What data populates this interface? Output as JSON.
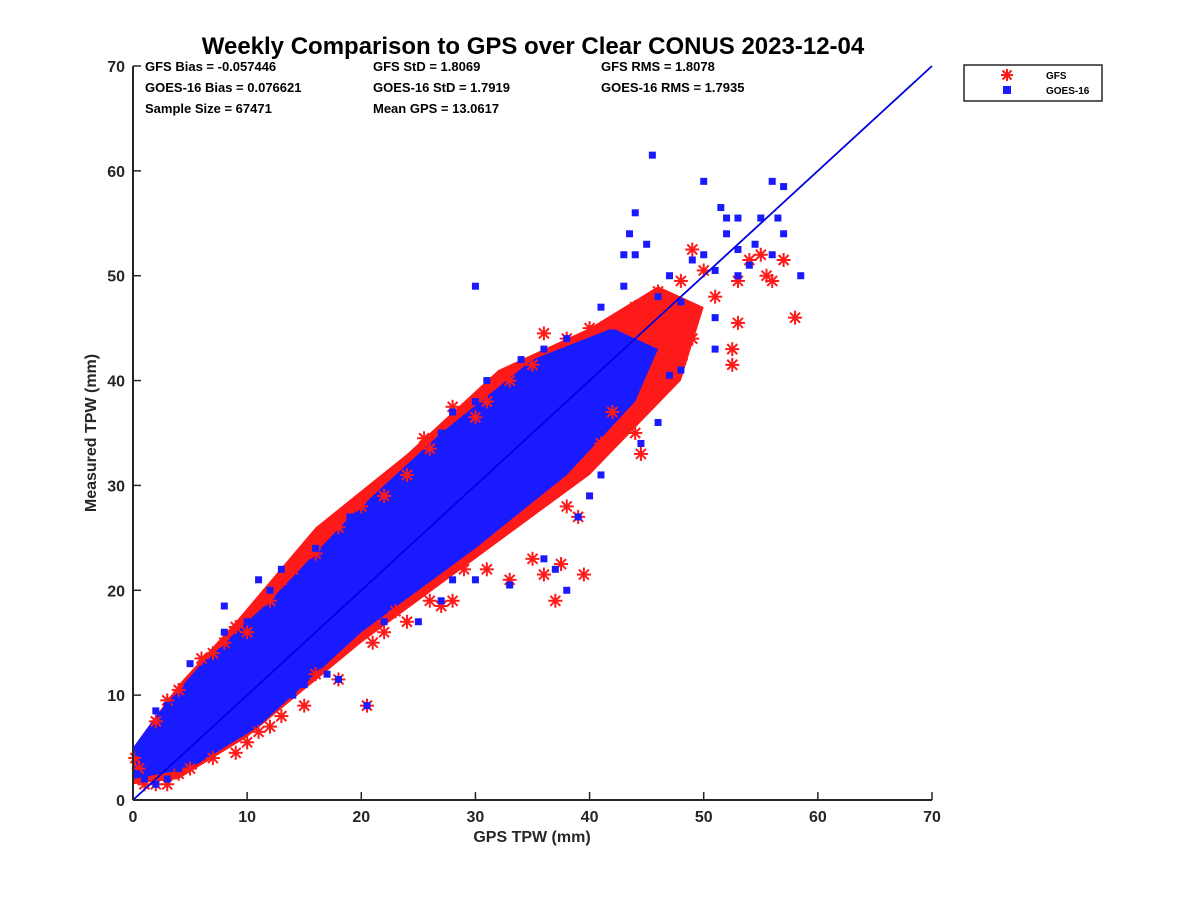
{
  "chart_data": {
    "type": "scatter",
    "title": "Weekly Comparison to GPS over Clear CONUS 2023-12-04",
    "xlabel": "GPS TPW (mm)",
    "ylabel": "Measured TPW (mm)",
    "xlim": [
      0,
      70
    ],
    "ylim": [
      0,
      70
    ],
    "xticks": [
      0,
      10,
      20,
      30,
      40,
      50,
      60,
      70
    ],
    "yticks": [
      0,
      10,
      20,
      30,
      40,
      50,
      60,
      70
    ],
    "grid": false,
    "legend_position": "outside top-right",
    "reference_line": {
      "name": "1:1 line",
      "x": [
        0,
        70
      ],
      "y": [
        0,
        70
      ],
      "color": "#0000e0"
    },
    "stats": {
      "gfs_bias": "GFS Bias = -0.057446",
      "gfs_std": "GFS StD = 1.8069",
      "gfs_rms": "GFS RMS = 1.8078",
      "goes_bias": "GOES-16 Bias = 0.076621",
      "goes_std": "GOES-16 StD = 1.7919",
      "goes_rms": "GOES-16 RMS = 1.7935",
      "sample_size": "Sample Size = 67471",
      "mean_gps": "Mean GPS = 13.0617"
    },
    "series": [
      {
        "name": "GFS",
        "marker": "asterisk",
        "color": "#ff1a1a",
        "points": [
          [
            2,
            7.5
          ],
          [
            3,
            9.5
          ],
          [
            4,
            10.5
          ],
          [
            6,
            13.5
          ],
          [
            7,
            14
          ],
          [
            8,
            15
          ],
          [
            9,
            16.5
          ],
          [
            10,
            16
          ],
          [
            12,
            19
          ],
          [
            13,
            21
          ],
          [
            14,
            22
          ],
          [
            16,
            23.5
          ],
          [
            18,
            26
          ],
          [
            20,
            28
          ],
          [
            22,
            29
          ],
          [
            24,
            31
          ],
          [
            25.5,
            34.5
          ],
          [
            26,
            33.5
          ],
          [
            28,
            37.5
          ],
          [
            30,
            36.5
          ],
          [
            31,
            38
          ],
          [
            33,
            40
          ],
          [
            35,
            41.5
          ],
          [
            36,
            44.5
          ],
          [
            38,
            44
          ],
          [
            40,
            45
          ],
          [
            42,
            45.5
          ],
          [
            44,
            47
          ],
          [
            46,
            48.5
          ],
          [
            48,
            49.5
          ],
          [
            49,
            52.5
          ],
          [
            50,
            50.5
          ],
          [
            51,
            48
          ],
          [
            53,
            49.5
          ],
          [
            54,
            51.5
          ],
          [
            55,
            52
          ],
          [
            55.5,
            50
          ],
          [
            56,
            49.5
          ],
          [
            57,
            51.5
          ],
          [
            58,
            46
          ],
          [
            52.5,
            43
          ],
          [
            52.5,
            41.5
          ],
          [
            53,
            45.5
          ],
          [
            49,
            44
          ],
          [
            48,
            42
          ],
          [
            47,
            44
          ],
          [
            46,
            40
          ],
          [
            45,
            39
          ],
          [
            42,
            37
          ],
          [
            44,
            35
          ],
          [
            44.5,
            33
          ],
          [
            41,
            34
          ],
          [
            40,
            32
          ],
          [
            39,
            27
          ],
          [
            38,
            28
          ],
          [
            37.5,
            22.5
          ],
          [
            39.5,
            21.5
          ],
          [
            36,
            21.5
          ],
          [
            37,
            19
          ],
          [
            35,
            23
          ],
          [
            33,
            21
          ],
          [
            31,
            22
          ],
          [
            29,
            22
          ],
          [
            28,
            19
          ],
          [
            27,
            18.5
          ],
          [
            26,
            19
          ],
          [
            24,
            17
          ],
          [
            23,
            18
          ],
          [
            22,
            16
          ],
          [
            21,
            15
          ],
          [
            20.5,
            9
          ],
          [
            18,
            11.5
          ],
          [
            16,
            12
          ],
          [
            15,
            9
          ],
          [
            13,
            8
          ],
          [
            12,
            7
          ],
          [
            11,
            6.5
          ],
          [
            10,
            5.5
          ],
          [
            9,
            4.5
          ],
          [
            7,
            4
          ],
          [
            5,
            3
          ],
          [
            4,
            2.5
          ],
          [
            3,
            1.5
          ],
          [
            2,
            1.5
          ],
          [
            1,
            1.5
          ],
          [
            0.5,
            3
          ],
          [
            0.2,
            4
          ]
        ]
      },
      {
        "name": "GOES-16",
        "marker": "square",
        "color": "#1a1aff",
        "points": [
          [
            1,
            4
          ],
          [
            2,
            8.5
          ],
          [
            3,
            9
          ],
          [
            5,
            13
          ],
          [
            8,
            16
          ],
          [
            8,
            18.5
          ],
          [
            10,
            17
          ],
          [
            11,
            21
          ],
          [
            12,
            20
          ],
          [
            13,
            22
          ],
          [
            16,
            24
          ],
          [
            18,
            25
          ],
          [
            19,
            27
          ],
          [
            21,
            28
          ],
          [
            23,
            29
          ],
          [
            25,
            32
          ],
          [
            27,
            35
          ],
          [
            28,
            37
          ],
          [
            30,
            38
          ],
          [
            31,
            40
          ],
          [
            34,
            42
          ],
          [
            36,
            43
          ],
          [
            38,
            44
          ],
          [
            41,
            47
          ],
          [
            43,
            49
          ],
          [
            43,
            52
          ],
          [
            43.5,
            54
          ],
          [
            44,
            56
          ],
          [
            45,
            53
          ],
          [
            45.5,
            61.5
          ],
          [
            44,
            52
          ],
          [
            46,
            48
          ],
          [
            47,
            50
          ],
          [
            48,
            47.5
          ],
          [
            49,
            51.5
          ],
          [
            50,
            59
          ],
          [
            50,
            52
          ],
          [
            51,
            50.5
          ],
          [
            51.5,
            56.5
          ],
          [
            52,
            55.5
          ],
          [
            52,
            54
          ],
          [
            53,
            55.5
          ],
          [
            53,
            52.5
          ],
          [
            53,
            50
          ],
          [
            54,
            51
          ],
          [
            54.5,
            53
          ],
          [
            55,
            55.5
          ],
          [
            56,
            59
          ],
          [
            56,
            52
          ],
          [
            56.5,
            55.5
          ],
          [
            57,
            58.5
          ],
          [
            57,
            54
          ],
          [
            58.5,
            50
          ],
          [
            51,
            46
          ],
          [
            51,
            43
          ],
          [
            48,
            41
          ],
          [
            47,
            40.5
          ],
          [
            45,
            42
          ],
          [
            46,
            36
          ],
          [
            44.5,
            34
          ],
          [
            30,
            49
          ],
          [
            41,
            31
          ],
          [
            40,
            29
          ],
          [
            39,
            27
          ],
          [
            36,
            23
          ],
          [
            37,
            22
          ],
          [
            38,
            20
          ],
          [
            33,
            20.5
          ],
          [
            30,
            21
          ],
          [
            28,
            21
          ],
          [
            27,
            19
          ],
          [
            25,
            17
          ],
          [
            22,
            17
          ],
          [
            20.5,
            9
          ],
          [
            18,
            11.5
          ],
          [
            17,
            12
          ],
          [
            15,
            11
          ],
          [
            14,
            10
          ],
          [
            12,
            9
          ],
          [
            10,
            7
          ],
          [
            8,
            6
          ],
          [
            7,
            5
          ],
          [
            5,
            4
          ],
          [
            4,
            3
          ],
          [
            3,
            2
          ],
          [
            2,
            1.5
          ],
          [
            1,
            2
          ],
          [
            0.3,
            2.5
          ],
          [
            0.5,
            4.5
          ],
          [
            1.5,
            5
          ]
        ]
      }
    ]
  }
}
